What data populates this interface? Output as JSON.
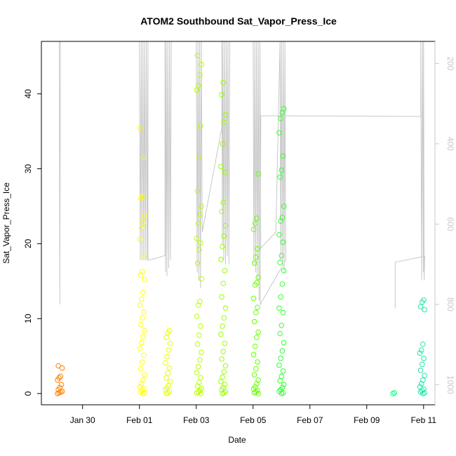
{
  "chart_data": {
    "type": "scatter",
    "title": "ATOM2 Southbound Sat_Vapor_Press_Ice",
    "xlabel": "Date",
    "ylabel": "Sat_Vapor_Press_Ice",
    "x_tick_labels": [
      "Jan 30",
      "Feb 01",
      "Feb 03",
      "Feb 05",
      "Feb 07",
      "Feb 09",
      "Feb 11"
    ],
    "x_tick_days": [
      30,
      32,
      34,
      36,
      38,
      40,
      42
    ],
    "xlim_days": [
      28.55,
      42.4
    ],
    "y_ticks": [
      0,
      10,
      20,
      30,
      40
    ],
    "ylim": [
      -1.5,
      47
    ],
    "right_axis": {
      "ticks": [
        200,
        400,
        600,
        800,
        1000
      ],
      "lim": [
        1050,
        145
      ],
      "color": "#c8c8c8"
    },
    "grid": false,
    "marker": "open-circle",
    "series": [
      {
        "day": 29.2,
        "color": "#ff8000",
        "values": [
          0,
          0.1,
          0.2,
          0.3,
          0.5,
          0.8,
          1.2,
          1.8,
          2.1,
          2.3,
          3.4,
          3.7
        ]
      },
      {
        "day": 32.1,
        "color": "#ffff00",
        "values": [
          0,
          0.1,
          0.2,
          0.4,
          0.6,
          0.9,
          1.3,
          1.8,
          2.5,
          3.3,
          4.2,
          5.1,
          6.0,
          6.8,
          7.6,
          8.4,
          9.2,
          10.1,
          10.9,
          11.8,
          12.6,
          13.5,
          15.2,
          15.8,
          16.3,
          18.2,
          20.6,
          22.1,
          22.8,
          23.7,
          26.1,
          26.3,
          31.5,
          35.4
        ]
      },
      {
        "day": 33.0,
        "color": "#e6ff00",
        "values": [
          0,
          0.1,
          0.3,
          0.5,
          0.8,
          1.1,
          1.6,
          2.1,
          2.7,
          3.4,
          4.1,
          4.9,
          5.8,
          6.7,
          7.5,
          8.1,
          8.4
        ]
      },
      {
        "day": 34.1,
        "color": "#b3ff00",
        "values": [
          0,
          0.1,
          0.2,
          0.4,
          0.7,
          1.0,
          1.5,
          2.1,
          2.8,
          3.6,
          4.5,
          5.5,
          6.6,
          7.8,
          9.0,
          10.3,
          11.8,
          12.3,
          15.3,
          17.4,
          19.2,
          20.1,
          20.7,
          22.7,
          23.9,
          25.0,
          27.0,
          31.5,
          35.7,
          40.5,
          41.1,
          42.5,
          43.9,
          45.1
        ]
      },
      {
        "day": 34.95,
        "color": "#99ff00",
        "values": [
          0,
          0.1,
          0.3,
          0.5,
          0.8,
          1.2,
          1.6,
          2.2,
          2.9,
          3.7,
          4.6,
          5.6,
          6.7,
          7.9,
          9.0,
          10.1,
          11.4,
          12.9,
          14.7,
          16.4,
          17.9,
          19.6,
          21.0,
          22.4,
          24.3,
          25.5,
          29.5,
          30.3,
          33.3,
          36.2,
          37.2,
          39.9,
          41.5
        ]
      },
      {
        "day": 36.1,
        "color": "#66ff00",
        "values": [
          0,
          0.1,
          0.2,
          0.4,
          0.6,
          0.9,
          1.3,
          1.8,
          2.5,
          3.3,
          4.2,
          5.2,
          6.3,
          7.5,
          8.2,
          9.6,
          10.8,
          11.5,
          12.7,
          14.5,
          14.8,
          15.5,
          17.4,
          18.2,
          19.3,
          21.9,
          22.7,
          23.4,
          29.3
        ]
      },
      {
        "day": 37.0,
        "color": "#33ff33",
        "values": [
          0,
          0.1,
          0.3,
          0.5,
          0.8,
          1.2,
          1.7,
          2.3,
          3.0,
          3.8,
          4.7,
          5.7,
          6.8,
          8.0,
          9.1,
          10.8,
          11.4,
          12.9,
          14.6,
          16.4,
          17.5,
          18.4,
          20.2,
          21.2,
          23.0,
          23.5,
          25.0,
          28.9,
          29.8,
          31.7,
          34.8,
          36.7,
          37.5,
          38.0
        ]
      },
      {
        "day": 41.0,
        "color": "#00ff80",
        "values": [
          0,
          0.1
        ]
      },
      {
        "day": 41.95,
        "color": "#1ee6aa",
        "values": [
          0,
          0.1,
          0.2,
          0.4,
          0.6,
          0.9,
          1.3,
          1.8,
          2.4,
          3.1,
          3.9,
          4.7,
          5.4,
          5.8,
          6.6,
          11.2,
          11.6,
          12.2,
          12.5
        ]
      }
    ],
    "pressure_trace": {
      "color": "#c8c8c8",
      "points": [
        [
          29.18,
          145
        ],
        [
          29.2,
          800
        ],
        [
          29.22,
          145
        ],
        [
          32.0,
          145
        ],
        [
          32.03,
          690
        ],
        [
          32.06,
          145
        ],
        [
          32.09,
          690
        ],
        [
          32.12,
          145
        ],
        [
          32.15,
          690
        ],
        [
          32.18,
          145
        ],
        [
          32.21,
          690
        ],
        [
          32.24,
          145
        ],
        [
          32.27,
          690
        ],
        [
          32.3,
          145
        ],
        [
          32.3,
          690
        ],
        [
          32.6,
          685
        ],
        [
          32.9,
          678
        ],
        [
          32.9,
          145
        ],
        [
          32.92,
          720
        ],
        [
          32.94,
          145
        ],
        [
          32.97,
          730
        ],
        [
          33.0,
          145
        ],
        [
          33.03,
          710
        ],
        [
          33.06,
          145
        ],
        [
          33.09,
          690
        ],
        [
          33.12,
          145
        ],
        [
          34.0,
          145
        ],
        [
          34.03,
          720
        ],
        [
          34.06,
          145
        ],
        [
          34.09,
          740
        ],
        [
          34.12,
          145
        ],
        [
          34.15,
          760
        ],
        [
          34.18,
          145
        ],
        [
          34.21,
          620
        ],
        [
          34.9,
          360
        ],
        [
          34.9,
          145
        ],
        [
          34.92,
          650
        ],
        [
          34.94,
          145
        ],
        [
          34.97,
          690
        ],
        [
          35.0,
          145
        ],
        [
          35.03,
          700
        ],
        [
          35.06,
          145
        ],
        [
          35.09,
          680
        ],
        [
          35.12,
          145
        ],
        [
          35.15,
          700
        ],
        [
          35.18,
          145
        ],
        [
          36.0,
          145
        ],
        [
          36.03,
          700
        ],
        [
          36.06,
          145
        ],
        [
          36.09,
          720
        ],
        [
          36.12,
          145
        ],
        [
          36.15,
          740
        ],
        [
          36.18,
          145
        ],
        [
          36.21,
          790
        ],
        [
          36.24,
          145
        ],
        [
          36.27,
          660
        ],
        [
          36.8,
          620
        ],
        [
          36.95,
          145
        ],
        [
          36.97,
          690
        ],
        [
          37.0,
          145
        ],
        [
          37.03,
          700
        ],
        [
          37.06,
          145
        ],
        [
          37.09,
          720
        ],
        [
          37.12,
          145
        ],
        [
          37.15,
          690
        ],
        [
          36.25,
          800
        ],
        [
          36.27,
          330
        ],
        [
          41.9,
          332
        ],
        [
          41.9,
          145
        ],
        [
          41.93,
          740
        ],
        [
          41.96,
          145
        ],
        [
          41.99,
          720
        ],
        [
          42.0,
          145
        ],
        [
          42.02,
          740
        ],
        [
          42.04,
          680
        ],
        [
          41.0,
          695
        ],
        [
          41.0,
          810
        ]
      ]
    }
  }
}
